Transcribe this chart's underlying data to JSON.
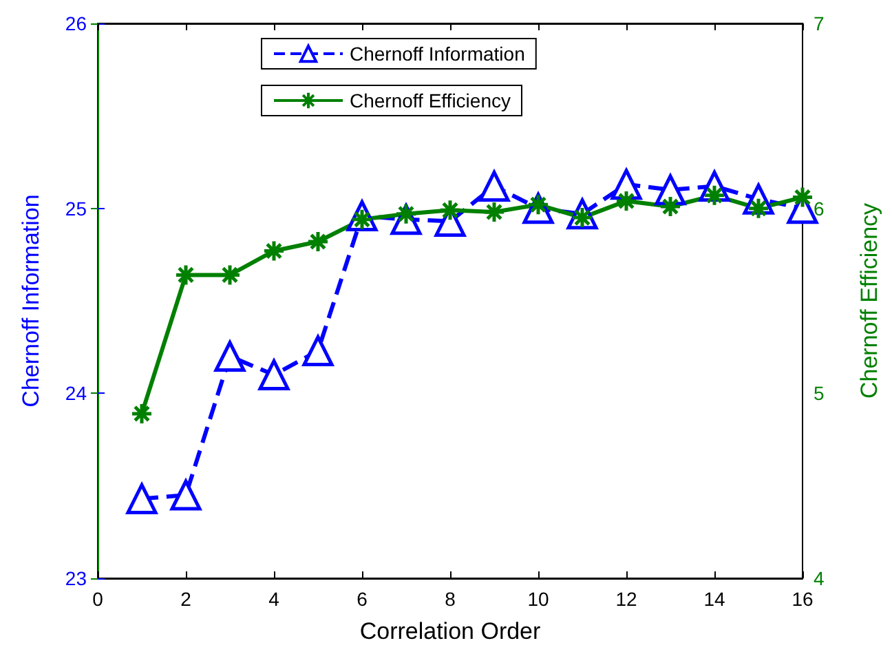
{
  "chart_data": {
    "type": "line",
    "xlabel": "Correlation Order",
    "ylabel": "Chernoff Information",
    "y2label": "Chernoff Efficiency",
    "x": [
      1,
      2,
      3,
      4,
      5,
      6,
      7,
      8,
      9,
      10,
      11,
      12,
      13,
      14,
      15,
      16
    ],
    "series": [
      {
        "name": "Chernoff Information",
        "color": "#0000ff",
        "marker": "triangle",
        "line_style": "dashed",
        "values": [
          23.43,
          23.45,
          24.2,
          24.1,
          24.23,
          24.96,
          24.94,
          24.93,
          25.12,
          25.0,
          24.97,
          25.13,
          25.1,
          25.12,
          25.05,
          25.0
        ]
      },
      {
        "name": "Chernoff Efficiency",
        "color": "#008000",
        "marker": "cross",
        "line_style": "solid",
        "axis": "y2",
        "values": [
          4.89,
          5.64,
          5.64,
          5.77,
          5.82,
          5.94,
          5.97,
          5.99,
          5.98,
          6.02,
          5.95,
          6.04,
          6.01,
          6.07,
          6.0,
          6.06
        ]
      }
    ],
    "xlim": [
      0,
      16
    ],
    "xticks": [
      0,
      2,
      4,
      6,
      8,
      10,
      12,
      14,
      16
    ],
    "ylim": [
      23,
      26
    ],
    "yticks": [
      23,
      24,
      25,
      26
    ],
    "y2lim": [
      4,
      7
    ],
    "y2ticks": [
      4,
      5,
      6,
      7
    ],
    "legend": "top",
    "grid": false
  }
}
